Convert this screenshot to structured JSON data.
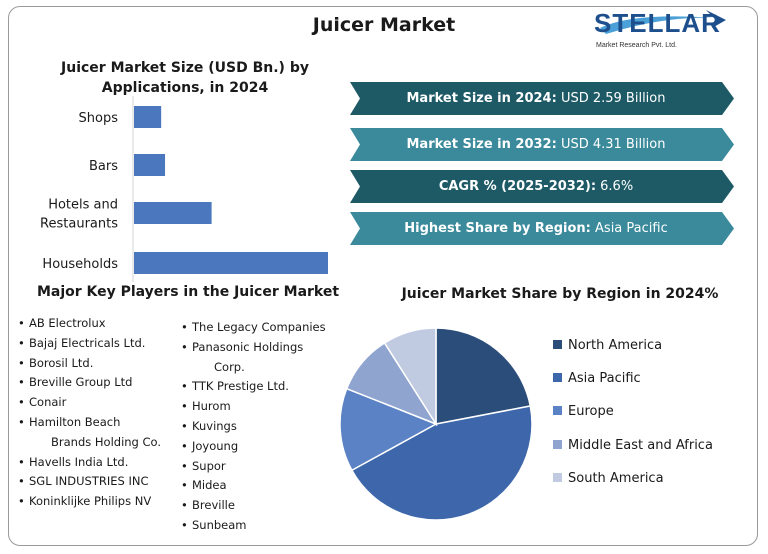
{
  "page": {
    "title": "Juicer Market"
  },
  "logo": {
    "name": "STELLAR",
    "subtitle": "Market Research Pvt. Ltd."
  },
  "colors": {
    "bar": "#4a77be",
    "banner_dark": "#1d5a66",
    "banner_light": "#3a8a9c",
    "pie": [
      "#2a4d7a",
      "#3d67aa",
      "#5b82c4",
      "#8fa4cf",
      "#c0cbe2"
    ]
  },
  "banners": [
    {
      "label": "Market Size in 2024:",
      "value": " USD 2.59 Billion"
    },
    {
      "label": "Market Size in 2032:",
      "value": " USD 4.31 Billion"
    },
    {
      "label": "CAGR % (2025-2032):",
      "value": " 6.6%"
    },
    {
      "label": "Highest Share by Region:",
      "value": " Asia Pacific"
    }
  ],
  "key_players": {
    "title": "Major Key Players in the Juicer Market",
    "column1": [
      {
        "line1": "AB Electrolux"
      },
      {
        "line1": "Bajaj Electricals Ltd."
      },
      {
        "line1": "Borosil Ltd."
      },
      {
        "line1": "Breville Group Ltd"
      },
      {
        "line1": "Conair"
      },
      {
        "line1": "Hamilton Beach",
        "line2": "Brands Holding Co."
      },
      {
        "line1": "Havells India Ltd."
      },
      {
        "line1": "SGL INDUSTRIES INC"
      },
      {
        "line1": "Koninklijke Philips NV"
      }
    ],
    "column2": [
      {
        "line1": "The Legacy Companies"
      },
      {
        "line1": "Panasonic Holdings",
        "line2": "Corp."
      },
      {
        "line1": "TTK Prestige Ltd."
      },
      {
        "line1": "Hurom"
      },
      {
        "line1": "Kuvings"
      },
      {
        "line1": "Joyoung"
      },
      {
        "line1": "Supor"
      },
      {
        "line1": "Midea"
      },
      {
        "line1": "Breville"
      },
      {
        "line1": "Sunbeam"
      }
    ]
  },
  "chart_data": [
    {
      "type": "bar",
      "orientation": "horizontal",
      "title": "Juicer Market Size (USD Bn.) by Applications, in 2024",
      "categories": [
        "Shops",
        "Bars",
        "Hotels and Restaurants",
        "Households"
      ],
      "category_lines": [
        [
          "Shops"
        ],
        [
          "Bars"
        ],
        [
          "Hotels and",
          "Restaurants"
        ],
        [
          "Households"
        ]
      ],
      "values": [
        0.14,
        0.16,
        0.4,
        1.0
      ],
      "unit": "relative share of largest bar (no values printed)",
      "grid": false,
      "legend": "none"
    },
    {
      "type": "pie",
      "title": "Juicer Market Share by Region in 2024%",
      "labels": [
        "North America",
        "Asia Pacific",
        "Europe",
        "Middle East and Africa",
        "South America"
      ],
      "values": [
        22,
        45,
        14,
        10,
        9
      ],
      "legend": "right"
    }
  ]
}
